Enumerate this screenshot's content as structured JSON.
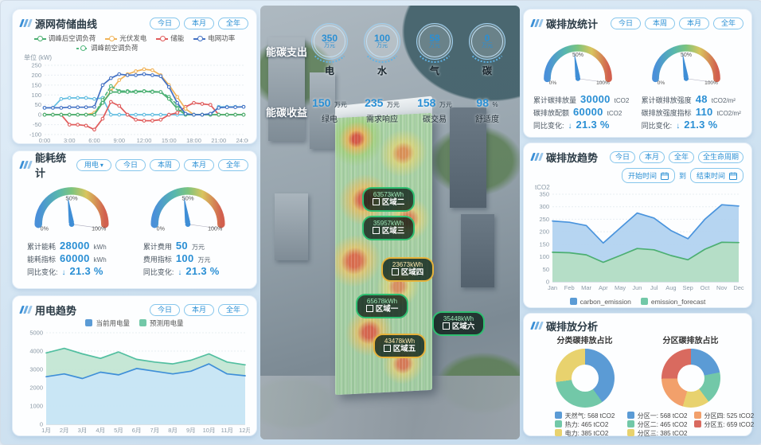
{
  "colors": {
    "accent": "#2a8fd4",
    "button_border": "#86c6ec",
    "gauge_blue": "#4a90d9",
    "gauge_green": "#7cc47f",
    "gauge_red": "#d2604e",
    "series_green": "#4caf72",
    "series_orange": "#f0b359",
    "series_red": "#e05c5c",
    "series_blue": "#4472c4",
    "series_cyan": "#62bde0",
    "donut_palette": [
      "#5B9BD5",
      "#72C8A8",
      "#E8D26E",
      "#F2A06B",
      "#D96A5F"
    ]
  },
  "gauge_labels": {
    "p0": "0%",
    "p50": "50%",
    "p100": "100%"
  },
  "p1": {
    "title": "源网荷储曲线",
    "buttons": [
      "今日",
      "本月",
      "全年"
    ],
    "unit": "单位 (kW)",
    "legend": [
      "调峰后空调负荷",
      "光伏发电",
      "储能",
      "电网功率",
      "调峰前空调负荷"
    ]
  },
  "p2": {
    "title": "能耗统计",
    "filter": "用电",
    "buttons": [
      "今日",
      "本周",
      "本月",
      "全年"
    ],
    "g1": {
      "label1": "累计能耗",
      "value1": "28000",
      "unit1": "kWh",
      "label2": "能耗指标",
      "value2": "60000",
      "unit2": "kWh",
      "label3": "同比变化:",
      "value3": "21.3 %"
    },
    "g2": {
      "label1": "累计费用",
      "value1": "50",
      "unit1": "万元",
      "label2": "费用指标",
      "value2": "100",
      "unit2": "万元",
      "label3": "同比变化:",
      "value3": "21.3 %"
    }
  },
  "p3": {
    "title": "用电趋势",
    "buttons": [
      "今日",
      "本月",
      "全年"
    ],
    "legend": [
      "当前用电量",
      "预测用电量"
    ]
  },
  "p4": {
    "title": "碳排放统计",
    "buttons": [
      "今日",
      "本周",
      "本月",
      "全年"
    ],
    "g1": {
      "label1": "累计碳排放量",
      "value1": "30000",
      "unit1": "tCO2",
      "label2": "碳排放配额",
      "value2": "60000",
      "unit2": "tCO2",
      "label3": "同比变化:",
      "value3": "21.3 %"
    },
    "g2": {
      "label1": "累计碳排放强度",
      "value1": "48",
      "unit1": "tCO2/m²",
      "label2": "碳排放强度指标",
      "value2": "110",
      "unit2": "tCO2/m²",
      "label3": "同比变化:",
      "value3": "21.3 %"
    }
  },
  "p5": {
    "title": "碳排放趋势",
    "buttons": [
      "今日",
      "本月",
      "全年",
      "全生命周期"
    ],
    "start_label": "开始时间",
    "to_label": "到",
    "end_label": "结束时间",
    "ylabel": "tCO2",
    "legend": [
      "carbon_emission",
      "emission_forecast"
    ]
  },
  "p6": {
    "title": "碳排放分析",
    "chart1": {
      "title": "分类碳排放占比",
      "legend": [
        {
          "label": "天然气:",
          "value": "568 tCO2"
        },
        {
          "label": "热力:",
          "value": "465 tCO2"
        },
        {
          "label": "电力:",
          "value": "385 tCO2"
        }
      ]
    },
    "chart2": {
      "title": "分区碳排放占比",
      "legend": [
        {
          "label": "分区一:",
          "value": "568 tCO2"
        },
        {
          "label": "分区二:",
          "value": "465 tCO2"
        },
        {
          "label": "分区三:",
          "value": "385 tCO2"
        },
        {
          "label": "分区四:",
          "value": "525 tCO2"
        },
        {
          "label": "分区五:",
          "value": "659 tCO2"
        }
      ]
    }
  },
  "center": {
    "expense_label": "能碳支出",
    "income_label": "能碳收益",
    "expenses": [
      {
        "value": "350",
        "unit": "万元",
        "name": "电"
      },
      {
        "value": "100",
        "unit": "万元",
        "name": "水"
      },
      {
        "value": "58",
        "unit": "万元",
        "name": "气"
      },
      {
        "value": "0",
        "unit": "万元",
        "name": "碳"
      }
    ],
    "incomes": [
      {
        "value": "150",
        "unit": "万元",
        "name": "绿电"
      },
      {
        "value": "235",
        "unit": "万元",
        "name": "需求响应"
      },
      {
        "value": "158",
        "unit": "万元",
        "name": "碳交易"
      },
      {
        "value": "98",
        "unit": "%",
        "name": "舒适度"
      }
    ],
    "zones": [
      {
        "value": "63573kWh",
        "name": "区域二",
        "cls": "green"
      },
      {
        "value": "35957kWh",
        "name": "区域三",
        "cls": "green"
      },
      {
        "value": "23673kWh",
        "name": "区域四",
        "cls": "yellow"
      },
      {
        "value": "65678kWh",
        "name": "区域一",
        "cls": "green"
      },
      {
        "value": "35448kWh",
        "name": "区域六",
        "cls": "green"
      },
      {
        "value": "43478kWh",
        "name": "区域五",
        "cls": "yellow"
      }
    ]
  },
  "chart_data": [
    {
      "id": "source_grid_load_storage",
      "type": "line",
      "title": "源网荷储曲线",
      "ylabel": "单位 (kW)",
      "ylim": [
        -100,
        250
      ],
      "x": [
        0,
        1,
        2,
        3,
        4,
        5,
        6,
        7,
        8,
        9,
        10,
        11,
        12,
        13,
        14,
        15,
        16,
        17,
        18,
        19,
        20,
        21,
        22,
        23,
        24
      ],
      "xticks": [
        {
          "v": 0,
          "label": "0:00"
        },
        {
          "v": 3,
          "label": "3:00"
        },
        {
          "v": 6,
          "label": "6:00"
        },
        {
          "v": 9,
          "label": "9:00"
        },
        {
          "v": 12,
          "label": "12:00"
        },
        {
          "v": 15,
          "label": "15:00"
        },
        {
          "v": 18,
          "label": "18:00"
        },
        {
          "v": 21,
          "label": "21:00"
        },
        {
          "v": 24,
          "label": "24:00"
        }
      ],
      "series": [
        {
          "name": "",
          "color": "#62bde0",
          "marker": true,
          "values": [
            35,
            35,
            80,
            85,
            85,
            85,
            80,
            85,
            0,
            0,
            0,
            0,
            0,
            0,
            0,
            0,
            0,
            0,
            0,
            0,
            0,
            40,
            40,
            40,
            40
          ]
        },
        {
          "name": "储能",
          "color": "#e05c5c",
          "marker": true,
          "values": [
            0,
            0,
            0,
            -50,
            -50,
            -55,
            -75,
            -20,
            65,
            45,
            0,
            -25,
            -30,
            -30,
            -25,
            0,
            10,
            40,
            60,
            55,
            50,
            0,
            0,
            0,
            0
          ]
        },
        {
          "name": "光伏发电",
          "color": "#f0b359",
          "marker": true,
          "values": [
            0,
            0,
            0,
            0,
            0,
            0,
            10,
            60,
            120,
            175,
            205,
            220,
            230,
            225,
            200,
            150,
            90,
            30,
            0,
            0,
            0,
            0,
            0,
            0,
            0
          ]
        },
        {
          "name": "调峰前空调负荷",
          "color": "#53b87f",
          "dash": "4,3",
          "marker": true,
          "values": [
            0,
            0,
            0,
            0,
            0,
            0,
            0,
            75,
            145,
            120,
            120,
            118,
            120,
            118,
            115,
            90,
            50,
            5,
            0,
            0,
            0,
            0,
            0,
            0,
            0
          ]
        },
        {
          "name": "调峰后空调负荷",
          "color": "#4caf72",
          "marker": true,
          "values": [
            0,
            0,
            0,
            0,
            0,
            0,
            0,
            60,
            115,
            115,
            115,
            115,
            118,
            115,
            115,
            80,
            30,
            0,
            0,
            0,
            0,
            0,
            0,
            0,
            0
          ]
        },
        {
          "name": "电网功率",
          "color": "#4472c4",
          "marker": true,
          "values": [
            35,
            35,
            35,
            38,
            38,
            38,
            40,
            150,
            185,
            205,
            200,
            200,
            205,
            200,
            195,
            140,
            60,
            5,
            0,
            0,
            5,
            35,
            38,
            38,
            40
          ]
        }
      ]
    },
    {
      "id": "electricity_trend",
      "type": "area",
      "title": "用电趋势",
      "ylim": [
        0,
        5000
      ],
      "categories": [
        "1月",
        "2月",
        "3月",
        "4月",
        "5月",
        "6月",
        "7月",
        "8月",
        "9月",
        "10月",
        "11月",
        "12月"
      ],
      "series": [
        {
          "name": "预测用电量",
          "color": "#52bfa0",
          "fill": "#c0e4d2",
          "values": [
            3900,
            4150,
            3850,
            3600,
            3950,
            3550,
            3400,
            3300,
            3500,
            3850,
            3400,
            3250
          ]
        },
        {
          "name": "当前用电量",
          "color": "#3f8fd8",
          "fill": "#c9e5f8",
          "values": [
            2600,
            2750,
            2500,
            2850,
            2700,
            3050,
            2900,
            2750,
            2900,
            3300,
            2750,
            2650
          ]
        }
      ]
    },
    {
      "id": "carbon_trend",
      "type": "area",
      "title": "碳排放趋势",
      "ylabel": "tCO2",
      "ylim": [
        0,
        350
      ],
      "categories": [
        "Jan",
        "Feb",
        "Mar",
        "Apr",
        "May",
        "Jun",
        "Jul",
        "Aug",
        "Sep",
        "Oct",
        "Nov",
        "Dec"
      ],
      "series": [
        {
          "name": "carbon_emission",
          "color": "#4a94dd",
          "fill": "#aed0f0",
          "values": [
            243,
            238,
            225,
            155,
            215,
            275,
            255,
            205,
            172,
            250,
            308,
            303
          ]
        },
        {
          "name": "emission_forecast",
          "color": "#4caf72",
          "fill": "#b5dfc2",
          "values": [
            118,
            116,
            108,
            78,
            105,
            133,
            128,
            105,
            88,
            130,
            158,
            157
          ]
        }
      ]
    },
    {
      "id": "category_emission_share",
      "type": "pie",
      "title": "分类碳排放占比",
      "unit": "tCO2",
      "labels": [
        "天然气",
        "热力",
        "电力"
      ],
      "values": [
        568,
        465,
        385
      ],
      "colors": [
        "#5B9BD5",
        "#72C8A8",
        "#E8D26E"
      ]
    },
    {
      "id": "zone_emission_share",
      "type": "pie",
      "title": "分区碳排放占比",
      "unit": "tCO2",
      "labels": [
        "分区一",
        "分区二",
        "分区三",
        "分区四",
        "分区五"
      ],
      "values": [
        568,
        465,
        385,
        525,
        659
      ],
      "colors": [
        "#5B9BD5",
        "#72C8A8",
        "#E8D26E",
        "#F2A06B",
        "#D96A5F"
      ]
    }
  ]
}
